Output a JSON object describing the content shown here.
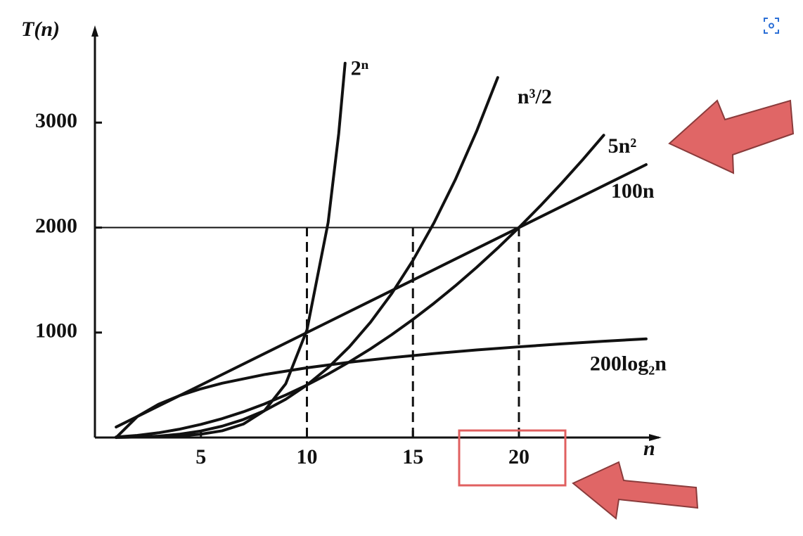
{
  "chart_data": {
    "type": "line",
    "y_label": "T(n)",
    "x_label": "n",
    "xlim": [
      0,
      26.6
    ],
    "ylim": [
      0,
      3900
    ],
    "xticks": [
      5,
      10,
      15,
      20
    ],
    "yticks": [
      1000,
      2000,
      3000
    ],
    "reference_y": 2000,
    "reference_x": [
      10,
      15,
      20
    ],
    "series": [
      {
        "name": "2ⁿ",
        "color": "#111111",
        "x": [
          1,
          2,
          3,
          4,
          5,
          6,
          7,
          8,
          9,
          10,
          11,
          11.5,
          11.8
        ],
        "values": [
          2,
          4,
          8,
          16,
          32,
          64,
          128,
          256,
          512,
          1024,
          2048,
          2896,
          3566
        ]
      },
      {
        "name": "n³/2",
        "color": "#111111",
        "x": [
          1,
          2,
          3,
          4,
          5,
          6,
          7,
          8,
          9,
          10,
          11,
          12,
          13,
          14,
          15,
          16,
          17,
          18,
          19
        ],
        "values": [
          0.5,
          4,
          13.5,
          32,
          62.5,
          108,
          171.5,
          256,
          364.5,
          500,
          665.5,
          864,
          1098.5,
          1372,
          1687.5,
          2048,
          2456.5,
          2916,
          3429.5
        ]
      },
      {
        "name": "5n²",
        "color": "#111111",
        "x": [
          1,
          2,
          3,
          4,
          5,
          6,
          7,
          8,
          9,
          10,
          11,
          12,
          13,
          14,
          15,
          16,
          17,
          18,
          19,
          20,
          21,
          22,
          23,
          24
        ],
        "values": [
          5,
          20,
          45,
          80,
          125,
          180,
          245,
          320,
          405,
          500,
          605,
          720,
          845,
          980,
          1125,
          1280,
          1445,
          1620,
          1805,
          2000,
          2205,
          2420,
          2645,
          2880
        ]
      },
      {
        "name": "100n",
        "color": "#111111",
        "x": [
          1,
          5,
          10,
          15,
          20,
          26
        ],
        "values": [
          100,
          500,
          1000,
          1500,
          2000,
          2600
        ]
      },
      {
        "name": "200log₂n",
        "color": "#111111",
        "x": [
          1,
          2,
          3,
          4,
          5,
          6,
          8,
          10,
          12,
          14,
          16,
          18,
          20,
          22,
          24,
          26
        ],
        "values": [
          0,
          200,
          317,
          400,
          464,
          517,
          600,
          664,
          717,
          761,
          800,
          834,
          864,
          892,
          917,
          940
        ]
      }
    ]
  }
}
